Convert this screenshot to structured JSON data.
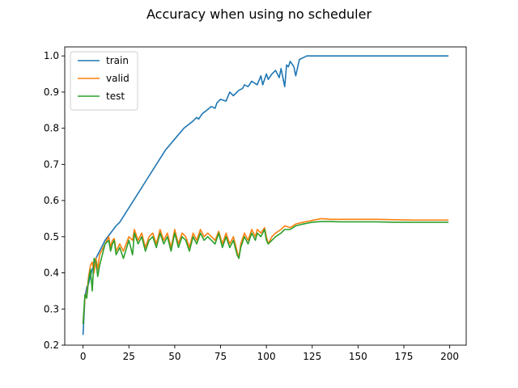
{
  "chart_data": {
    "type": "line",
    "title": "Accuracy when using no scheduler",
    "xlabel": "",
    "ylabel": "",
    "xlim": [
      -10,
      209
    ],
    "ylim": [
      0.2,
      1.025
    ],
    "xticks": [
      0,
      25,
      50,
      75,
      100,
      125,
      150,
      175,
      200
    ],
    "yticks": [
      0.2,
      0.3,
      0.4,
      0.5,
      0.6,
      0.7,
      0.8,
      0.9,
      1.0
    ],
    "ytick_labels": [
      "0.2",
      "0.3",
      "0.4",
      "0.5",
      "0.6",
      "0.7",
      "0.8",
      "0.9",
      "1.0"
    ],
    "grid": false,
    "legend": "top-left",
    "series": [
      {
        "name": "train",
        "color": "#1f77b4",
        "x": [
          0,
          1,
          2,
          3,
          5,
          7,
          10,
          12,
          15,
          18,
          20,
          25,
          30,
          35,
          40,
          45,
          50,
          55,
          60,
          62,
          63,
          65,
          70,
          72,
          73,
          75,
          78,
          80,
          82,
          85,
          87,
          88,
          90,
          92,
          95,
          97,
          98,
          100,
          101,
          103,
          105,
          107,
          108,
          110,
          111,
          112,
          113,
          115,
          116,
          118,
          120,
          122,
          125,
          130,
          140,
          150,
          160,
          170,
          180,
          190,
          199
        ],
        "values": [
          0.23,
          0.33,
          0.36,
          0.37,
          0.41,
          0.44,
          0.47,
          0.49,
          0.51,
          0.53,
          0.54,
          0.58,
          0.62,
          0.66,
          0.7,
          0.74,
          0.77,
          0.8,
          0.82,
          0.83,
          0.825,
          0.84,
          0.86,
          0.855,
          0.87,
          0.88,
          0.875,
          0.9,
          0.89,
          0.905,
          0.91,
          0.92,
          0.915,
          0.93,
          0.92,
          0.945,
          0.92,
          0.95,
          0.935,
          0.95,
          0.96,
          0.94,
          0.965,
          0.915,
          0.975,
          0.97,
          0.985,
          0.97,
          0.945,
          0.99,
          0.995,
          1.0,
          1.0,
          1.0,
          1.0,
          1.0,
          1.0,
          1.0,
          1.0,
          1.0,
          1.0
        ]
      },
      {
        "name": "valid",
        "color": "#ff7f0e",
        "x": [
          0,
          1,
          2,
          3,
          4,
          5,
          6,
          7,
          8,
          9,
          10,
          12,
          14,
          15,
          16,
          17,
          18,
          20,
          22,
          25,
          27,
          28,
          30,
          32,
          34,
          36,
          38,
          40,
          42,
          44,
          46,
          48,
          50,
          52,
          54,
          56,
          58,
          60,
          62,
          64,
          66,
          68,
          70,
          72,
          74,
          76,
          78,
          80,
          82,
          84,
          85,
          86,
          88,
          90,
          92,
          94,
          95,
          97,
          99,
          100,
          101,
          103,
          105,
          108,
          110,
          113,
          116,
          120,
          125,
          130,
          135,
          140,
          150,
          160,
          170,
          180,
          190,
          199
        ],
        "values": [
          0.26,
          0.33,
          0.34,
          0.39,
          0.42,
          0.43,
          0.4,
          0.44,
          0.41,
          0.45,
          0.46,
          0.48,
          0.5,
          0.47,
          0.49,
          0.495,
          0.46,
          0.48,
          0.46,
          0.5,
          0.49,
          0.52,
          0.49,
          0.51,
          0.47,
          0.5,
          0.51,
          0.48,
          0.52,
          0.49,
          0.51,
          0.47,
          0.52,
          0.48,
          0.51,
          0.5,
          0.47,
          0.51,
          0.49,
          0.52,
          0.5,
          0.51,
          0.5,
          0.49,
          0.515,
          0.48,
          0.51,
          0.48,
          0.5,
          0.46,
          0.44,
          0.48,
          0.51,
          0.49,
          0.52,
          0.5,
          0.52,
          0.51,
          0.525,
          0.5,
          0.48,
          0.5,
          0.51,
          0.52,
          0.53,
          0.525,
          0.535,
          0.54,
          0.545,
          0.55,
          0.548,
          0.548,
          0.548,
          0.548,
          0.547,
          0.546,
          0.546,
          0.546
        ]
      },
      {
        "name": "test",
        "color": "#2ca02c",
        "x": [
          0,
          1,
          2,
          3,
          4,
          5,
          6,
          7,
          8,
          9,
          10,
          12,
          14,
          15,
          16,
          17,
          18,
          20,
          22,
          25,
          27,
          28,
          30,
          32,
          34,
          36,
          38,
          40,
          42,
          44,
          46,
          48,
          50,
          52,
          54,
          56,
          58,
          60,
          62,
          64,
          66,
          68,
          70,
          72,
          74,
          76,
          78,
          80,
          82,
          84,
          85,
          86,
          88,
          90,
          92,
          94,
          95,
          97,
          99,
          100,
          101,
          103,
          105,
          108,
          110,
          113,
          116,
          120,
          125,
          130,
          135,
          140,
          150,
          160,
          170,
          180,
          190,
          199
        ],
        "values": [
          0.26,
          0.34,
          0.33,
          0.38,
          0.41,
          0.35,
          0.44,
          0.43,
          0.39,
          0.42,
          0.44,
          0.48,
          0.49,
          0.46,
          0.48,
          0.49,
          0.45,
          0.47,
          0.44,
          0.49,
          0.45,
          0.51,
          0.48,
          0.5,
          0.46,
          0.49,
          0.5,
          0.47,
          0.51,
          0.48,
          0.5,
          0.46,
          0.51,
          0.47,
          0.5,
          0.49,
          0.46,
          0.5,
          0.48,
          0.51,
          0.49,
          0.5,
          0.49,
          0.48,
          0.51,
          0.47,
          0.5,
          0.47,
          0.49,
          0.45,
          0.44,
          0.47,
          0.5,
          0.48,
          0.51,
          0.49,
          0.51,
          0.5,
          0.52,
          0.49,
          0.48,
          0.49,
          0.5,
          0.51,
          0.52,
          0.52,
          0.53,
          0.535,
          0.54,
          0.542,
          0.542,
          0.541,
          0.541,
          0.541,
          0.54,
          0.54,
          0.54,
          0.54
        ]
      }
    ]
  }
}
